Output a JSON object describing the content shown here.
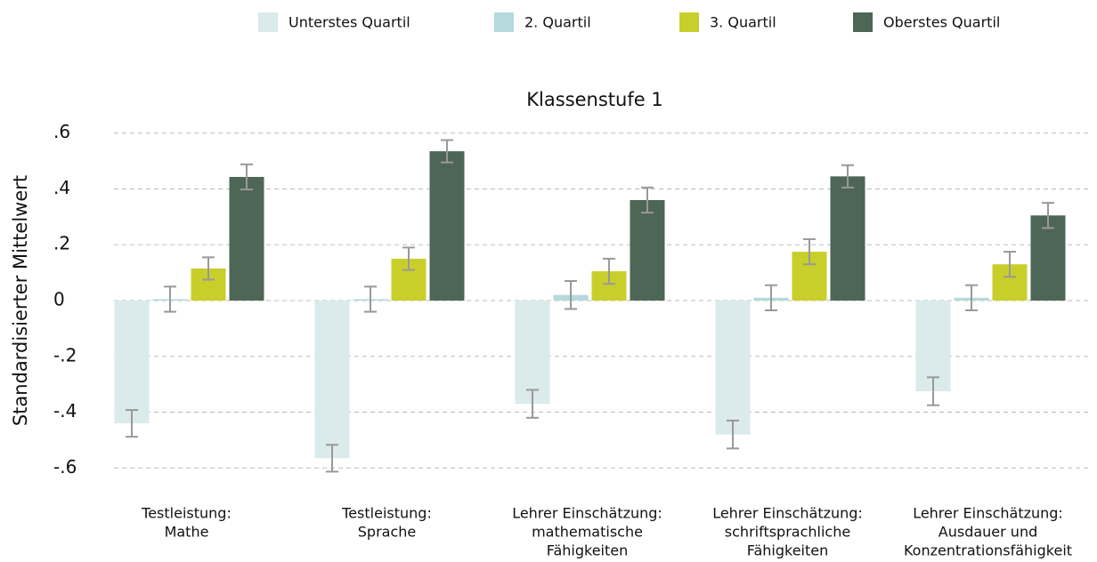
{
  "chart_data": {
    "type": "bar",
    "title": "Klassenstufe 1",
    "y_label": "Standardisierter Mittelwert",
    "categories": [
      [
        "Testleistung:",
        "Mathe"
      ],
      [
        "Testleistung:",
        "Sprache"
      ],
      [
        "Lehrer Einschätzung:",
        "mathematische",
        "Fähigkeiten"
      ],
      [
        "Lehrer Einschätzung:",
        "schriftsprachliche",
        "Fähigkeiten"
      ],
      [
        "Lehrer Einschätzung:",
        "Ausdauer und",
        "Konzentrationsfähigkeit"
      ]
    ],
    "series": [
      {
        "name": "Unterstes Quartil",
        "color": "#dbeaea",
        "values": [
          -0.44,
          -0.565,
          -0.37,
          -0.48,
          -0.325
        ],
        "errors": [
          0.048,
          0.048,
          0.05,
          0.05,
          0.05
        ]
      },
      {
        "name": "2. Quartil",
        "color": "#b5d9dc",
        "values": [
          0.005,
          0.005,
          0.02,
          0.01,
          0.01
        ],
        "errors": [
          0.045,
          0.045,
          0.05,
          0.045,
          0.045
        ]
      },
      {
        "name": "3. Quartil",
        "color": "#c8cf2b",
        "values": [
          0.115,
          0.15,
          0.105,
          0.175,
          0.13
        ],
        "errors": [
          0.04,
          0.04,
          0.045,
          0.045,
          0.045
        ]
      },
      {
        "name": "Oberstes Quartil",
        "color": "#4d6656",
        "values": [
          0.443,
          0.535,
          0.36,
          0.445,
          0.305
        ],
        "errors": [
          0.045,
          0.04,
          0.045,
          0.04,
          0.045
        ]
      }
    ],
    "error_color": "#999999",
    "ylim": [
      -0.65,
      0.65
    ],
    "yticks": [
      {
        "value": 0.6,
        "label": ".6"
      },
      {
        "value": 0.4,
        "label": ".4"
      },
      {
        "value": 0.2,
        "label": ".2"
      },
      0,
      {
        "value": -0.2,
        "label": "-.2"
      },
      {
        "value": -0.4,
        "label": "-.4"
      },
      {
        "value": -0.6,
        "label": "-.6"
      }
    ],
    "grid": true,
    "legend": "top"
  }
}
